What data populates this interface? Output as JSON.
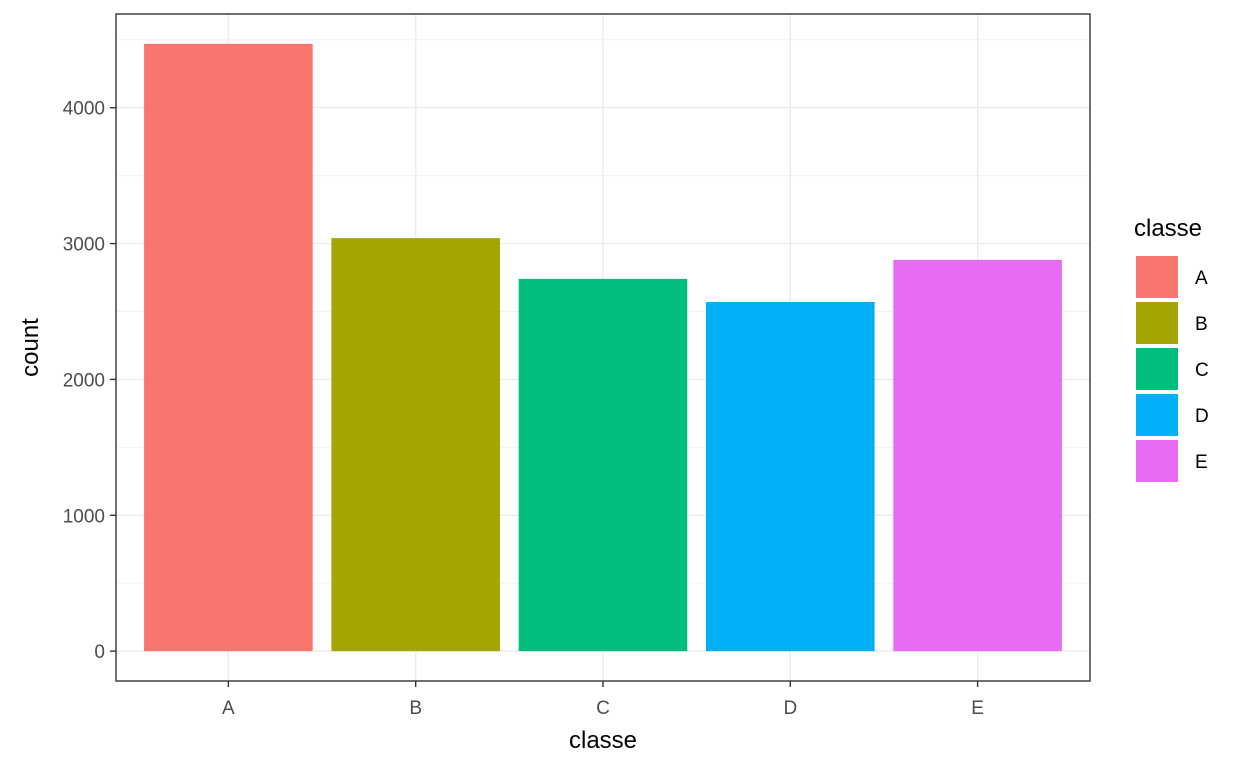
{
  "chart_data": {
    "type": "bar",
    "categories": [
      "A",
      "B",
      "C",
      "D",
      "E"
    ],
    "values": [
      4470,
      3040,
      2740,
      2570,
      2880
    ],
    "colors": [
      "#F8766D",
      "#A3A500",
      "#00BF7D",
      "#00B0F6",
      "#E76BF3"
    ],
    "title": "",
    "xlabel": "classe",
    "ylabel": "count",
    "ylim": [
      -220,
      4690
    ],
    "yticks": [
      0,
      1000,
      2000,
      3000,
      4000
    ],
    "ytick_labels": [
      "0",
      "1000",
      "2000",
      "3000",
      "4000"
    ],
    "grid": true,
    "legend": {
      "title": "classe",
      "entries": [
        "A",
        "B",
        "C",
        "D",
        "E"
      ],
      "placement": "right"
    }
  }
}
